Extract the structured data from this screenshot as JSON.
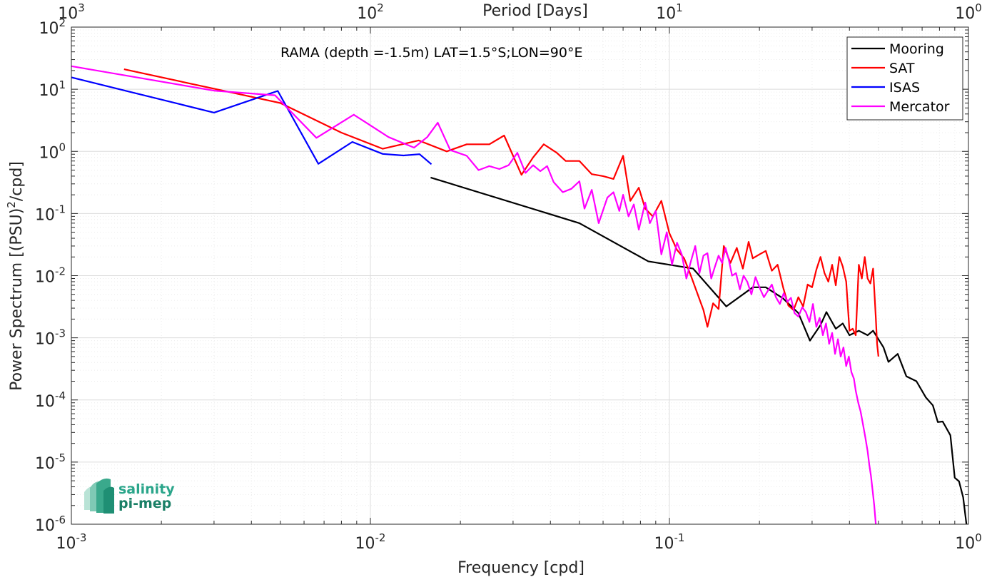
{
  "chart_data": {
    "type": "line",
    "title": "",
    "annotation": "RAMA (depth =-1.5m) LAT=1.5°S;LON=90°E",
    "xlabel": "Frequency [cpd]",
    "ylabel": "Power Spectrum [(PSU)²/cpd]",
    "ylabel_parts": {
      "main": "Power Spectrum [(PSU)",
      "sup": "2",
      "tail": "/cpd]"
    },
    "x2label": "Period [Days]",
    "x_scale": "log",
    "y_scale": "log",
    "xlim": [
      0.001,
      1
    ],
    "ylim": [
      1e-06,
      100
    ],
    "grid": true,
    "minor_grid": true,
    "legend_position": "top-right",
    "x_ticks": [
      {
        "value": 0.001,
        "base": "10",
        "exp": "-3"
      },
      {
        "value": 0.01,
        "base": "10",
        "exp": "-2"
      },
      {
        "value": 0.1,
        "base": "10",
        "exp": "-1"
      },
      {
        "value": 1,
        "base": "10",
        "exp": "0"
      }
    ],
    "x2_ticks": [
      {
        "value": 0.001,
        "base": "10",
        "exp": "3"
      },
      {
        "value": 0.01,
        "base": "10",
        "exp": "2"
      },
      {
        "value": 0.1,
        "base": "10",
        "exp": "1"
      },
      {
        "value": 1,
        "base": "10",
        "exp": "0"
      }
    ],
    "y_ticks": [
      {
        "value": 100,
        "base": "10",
        "exp": "2"
      },
      {
        "value": 10,
        "base": "10",
        "exp": "1"
      },
      {
        "value": 1,
        "base": "10",
        "exp": "0"
      },
      {
        "value": 0.1,
        "base": "10",
        "exp": "-1"
      },
      {
        "value": 0.01,
        "base": "10",
        "exp": "-2"
      },
      {
        "value": 0.001,
        "base": "10",
        "exp": "-3"
      },
      {
        "value": 0.0001,
        "base": "10",
        "exp": "-4"
      },
      {
        "value": 1e-05,
        "base": "10",
        "exp": "-5"
      },
      {
        "value": 1e-06,
        "base": "10",
        "exp": "-6"
      }
    ],
    "series": [
      {
        "name": "Mooring",
        "color": "#000000",
        "points": [
          [
            0.0159,
            0.38
          ],
          [
            0.05,
            0.07
          ],
          [
            0.085,
            0.017
          ],
          [
            0.12,
            0.013
          ],
          [
            0.155,
            0.0032
          ],
          [
            0.19,
            0.0065
          ],
          [
            0.21,
            0.0065
          ],
          [
            0.24,
            0.0043
          ],
          [
            0.27,
            0.0025
          ],
          [
            0.295,
            0.0009
          ],
          [
            0.32,
            0.0016
          ],
          [
            0.335,
            0.0026
          ],
          [
            0.36,
            0.0014
          ],
          [
            0.38,
            0.0017
          ],
          [
            0.4,
            0.0011
          ],
          [
            0.43,
            0.0013
          ],
          [
            0.46,
            0.0011
          ],
          [
            0.48,
            0.0013
          ],
          [
            0.52,
            0.0007
          ],
          [
            0.54,
            0.00041
          ],
          [
            0.58,
            0.00055
          ],
          [
            0.62,
            0.00024
          ],
          [
            0.67,
            0.0002
          ],
          [
            0.72,
            0.00011
          ],
          [
            0.76,
            8.2e-05
          ],
          [
            0.79,
            4.4e-05
          ],
          [
            0.82,
            4.5e-05
          ],
          [
            0.87,
            2.7e-05
          ],
          [
            0.9,
            5.6e-06
          ],
          [
            0.93,
            4.9e-06
          ],
          [
            0.96,
            2.7e-06
          ],
          [
            0.985,
            1e-06
          ]
        ]
      },
      {
        "name": "SAT",
        "color": "#ff0000",
        "points": [
          [
            0.0015,
            21
          ],
          [
            0.005,
            6
          ],
          [
            0.008,
            2
          ],
          [
            0.011,
            1.1
          ],
          [
            0.0145,
            1.5
          ],
          [
            0.018,
            1
          ],
          [
            0.021,
            1.3
          ],
          [
            0.025,
            1.3
          ],
          [
            0.028,
            1.8
          ],
          [
            0.032,
            0.42
          ],
          [
            0.035,
            0.8
          ],
          [
            0.038,
            1.3
          ],
          [
            0.042,
            0.95
          ],
          [
            0.045,
            0.7
          ],
          [
            0.05,
            0.7
          ],
          [
            0.055,
            0.43
          ],
          [
            0.06,
            0.4
          ],
          [
            0.065,
            0.36
          ],
          [
            0.07,
            0.85
          ],
          [
            0.074,
            0.16
          ],
          [
            0.079,
            0.26
          ],
          [
            0.083,
            0.12
          ],
          [
            0.088,
            0.09
          ],
          [
            0.094,
            0.16
          ],
          [
            0.1,
            0.048
          ],
          [
            0.106,
            0.026
          ],
          [
            0.112,
            0.019
          ],
          [
            0.118,
            0.01
          ],
          [
            0.124,
            0.0052
          ],
          [
            0.13,
            0.0028
          ],
          [
            0.134,
            0.0015
          ],
          [
            0.14,
            0.0036
          ],
          [
            0.146,
            0.0029
          ],
          [
            0.152,
            0.03
          ],
          [
            0.16,
            0.016
          ],
          [
            0.168,
            0.028
          ],
          [
            0.176,
            0.013
          ],
          [
            0.184,
            0.035
          ],
          [
            0.19,
            0.019
          ],
          [
            0.2,
            0.022
          ],
          [
            0.21,
            0.025
          ],
          [
            0.22,
            0.012
          ],
          [
            0.23,
            0.015
          ],
          [
            0.24,
            0.0065
          ],
          [
            0.25,
            0.0033
          ],
          [
            0.26,
            0.0028
          ],
          [
            0.27,
            0.0045
          ],
          [
            0.28,
            0.0032
          ],
          [
            0.29,
            0.0072
          ],
          [
            0.3,
            0.0065
          ],
          [
            0.31,
            0.0125
          ],
          [
            0.32,
            0.02
          ],
          [
            0.33,
            0.011
          ],
          [
            0.34,
            0.008
          ],
          [
            0.35,
            0.015
          ],
          [
            0.36,
            0.007
          ],
          [
            0.37,
            0.02
          ],
          [
            0.38,
            0.014
          ],
          [
            0.39,
            0.008
          ],
          [
            0.4,
            0.0013
          ],
          [
            0.41,
            0.0014
          ],
          [
            0.42,
            0.0011
          ],
          [
            0.43,
            0.015
          ],
          [
            0.44,
            0.009
          ],
          [
            0.45,
            0.02
          ],
          [
            0.46,
            0.009
          ],
          [
            0.47,
            0.0075
          ],
          [
            0.48,
            0.013
          ],
          [
            0.49,
            0.0021
          ],
          [
            0.495,
            0.0008
          ],
          [
            0.5,
            0.0005
          ]
        ]
      },
      {
        "name": "ISAS",
        "color": "#0000ff",
        "points": [
          [
            0.001,
            15.5
          ],
          [
            0.003,
            4.2
          ],
          [
            0.0049,
            9.4
          ],
          [
            0.0067,
            0.63
          ],
          [
            0.0087,
            1.42
          ],
          [
            0.011,
            0.91
          ],
          [
            0.0129,
            0.86
          ],
          [
            0.0146,
            0.9
          ],
          [
            0.016,
            0.62
          ]
        ]
      },
      {
        "name": "Mercator",
        "color": "#ff00ff",
        "points": [
          [
            0.001,
            23.5
          ],
          [
            0.003,
            9.5
          ],
          [
            0.0048,
            8
          ],
          [
            0.0066,
            1.65
          ],
          [
            0.0088,
            3.9
          ],
          [
            0.0115,
            1.7
          ],
          [
            0.014,
            1.15
          ],
          [
            0.0155,
            1.7
          ],
          [
            0.0168,
            2.9
          ],
          [
            0.0185,
            1.05
          ],
          [
            0.021,
            0.85
          ],
          [
            0.023,
            0.5
          ],
          [
            0.025,
            0.58
          ],
          [
            0.027,
            0.52
          ],
          [
            0.029,
            0.6
          ],
          [
            0.031,
            0.95
          ],
          [
            0.033,
            0.45
          ],
          [
            0.035,
            0.6
          ],
          [
            0.037,
            0.48
          ],
          [
            0.039,
            0.58
          ],
          [
            0.041,
            0.32
          ],
          [
            0.044,
            0.22
          ],
          [
            0.047,
            0.25
          ],
          [
            0.05,
            0.33
          ],
          [
            0.052,
            0.12
          ],
          [
            0.055,
            0.24
          ],
          [
            0.058,
            0.07
          ],
          [
            0.062,
            0.18
          ],
          [
            0.065,
            0.22
          ],
          [
            0.068,
            0.11
          ],
          [
            0.07,
            0.2
          ],
          [
            0.073,
            0.09
          ],
          [
            0.076,
            0.14
          ],
          [
            0.079,
            0.055
          ],
          [
            0.083,
            0.15
          ],
          [
            0.086,
            0.07
          ],
          [
            0.09,
            0.11
          ],
          [
            0.094,
            0.022
          ],
          [
            0.098,
            0.05
          ],
          [
            0.102,
            0.015
          ],
          [
            0.106,
            0.034
          ],
          [
            0.11,
            0.022
          ],
          [
            0.114,
            0.009
          ],
          [
            0.118,
            0.017
          ],
          [
            0.122,
            0.03
          ],
          [
            0.126,
            0.011
          ],
          [
            0.13,
            0.021
          ],
          [
            0.134,
            0.023
          ],
          [
            0.138,
            0.009
          ],
          [
            0.142,
            0.014
          ],
          [
            0.146,
            0.021
          ],
          [
            0.15,
            0.016
          ],
          [
            0.154,
            0.028
          ],
          [
            0.158,
            0.018
          ],
          [
            0.162,
            0.01
          ],
          [
            0.167,
            0.011
          ],
          [
            0.172,
            0.006
          ],
          [
            0.177,
            0.01
          ],
          [
            0.182,
            0.008
          ],
          [
            0.188,
            0.005
          ],
          [
            0.194,
            0.0095
          ],
          [
            0.2,
            0.0065
          ],
          [
            0.207,
            0.0045
          ],
          [
            0.214,
            0.0058
          ],
          [
            0.22,
            0.0072
          ],
          [
            0.227,
            0.0045
          ],
          [
            0.234,
            0.0035
          ],
          [
            0.241,
            0.0052
          ],
          [
            0.248,
            0.0038
          ],
          [
            0.255,
            0.0044
          ],
          [
            0.262,
            0.0025
          ],
          [
            0.27,
            0.0022
          ],
          [
            0.278,
            0.0031
          ],
          [
            0.286,
            0.0026
          ],
          [
            0.294,
            0.0018
          ],
          [
            0.302,
            0.0035
          ],
          [
            0.31,
            0.0015
          ],
          [
            0.318,
            0.0021
          ],
          [
            0.326,
            0.0011
          ],
          [
            0.334,
            0.0017
          ],
          [
            0.342,
            0.0008
          ],
          [
            0.35,
            0.0012
          ],
          [
            0.358,
            0.00055
          ],
          [
            0.366,
            0.00095
          ],
          [
            0.374,
            0.0005
          ],
          [
            0.382,
            0.0007
          ],
          [
            0.39,
            0.00035
          ],
          [
            0.398,
            0.0005
          ],
          [
            0.406,
            0.00028
          ],
          [
            0.414,
            0.00022
          ],
          [
            0.42,
            0.00014
          ],
          [
            0.428,
            9e-05
          ],
          [
            0.436,
            6.5e-05
          ],
          [
            0.444,
            4e-05
          ],
          [
            0.452,
            2.5e-05
          ],
          [
            0.46,
            1.5e-05
          ],
          [
            0.466,
            9e-06
          ],
          [
            0.472,
            6e-06
          ],
          [
            0.478,
            3.5e-06
          ],
          [
            0.484,
            2e-06
          ],
          [
            0.49,
            1e-06
          ]
        ]
      }
    ]
  },
  "logo": {
    "line1": "salinity",
    "line2": "pi-mep"
  }
}
